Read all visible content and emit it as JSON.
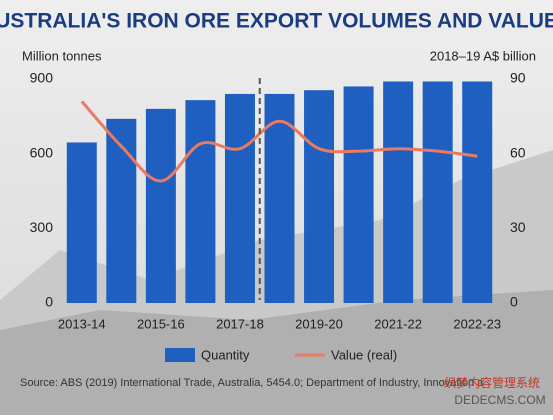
{
  "chart_data": {
    "type": "bar-line",
    "title": "AUSTRALIA'S IRON ORE EXPORT VOLUMES AND VALUES",
    "y_label": "Million tonnes",
    "y2_label": "2018–19 A$ billion",
    "categories": [
      "2013-14",
      null,
      "2015-16",
      null,
      "2017-18",
      null,
      "2019-20",
      null,
      "2021-22",
      null,
      "2022-23"
    ],
    "series": [
      {
        "name": "Quantity",
        "type": "bar",
        "color": "#1f5fc0",
        "values": [
          645,
          740,
          780,
          815,
          840,
          840,
          855,
          870,
          890,
          890,
          890
        ]
      },
      {
        "name": "Value (real)",
        "type": "line",
        "axis": "y2",
        "color": "#ea7a62",
        "values": [
          81,
          63,
          49,
          64,
          62,
          73,
          62,
          61,
          62,
          61,
          59
        ]
      }
    ],
    "ylim": [
      0,
      900
    ],
    "yticks": [
      0,
      300,
      600,
      900
    ],
    "y2lim": [
      0,
      90
    ],
    "y2ticks": [
      0,
      30,
      60,
      90
    ],
    "source": "Source: ABS (2019) International Trade, Australia, 5454.0; Department of Industry, Innovation a",
    "watermark": [
      "织梦内容管理系统",
      "DEDECMS.COM"
    ]
  }
}
